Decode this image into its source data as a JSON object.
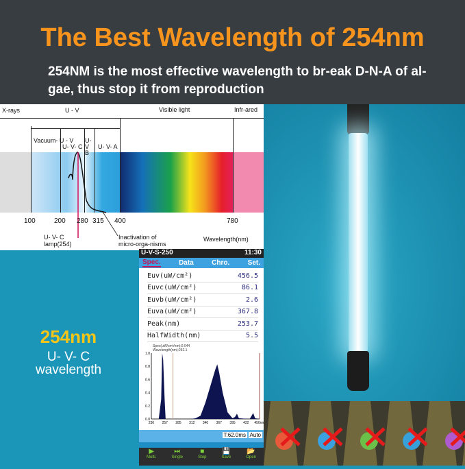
{
  "header": {
    "title": "The Best Wavelength of 254nm",
    "subtitle": "254NM is the most effective wavelength to br-eak D-N-A of al-gae, thus stop it from reproduction"
  },
  "diagram": {
    "top_labels": [
      "X-rays",
      "U - V",
      "Visible light",
      "Infr-ared"
    ],
    "sub_labels": [
      "Vacuum- U - V",
      "U- V- C",
      "U-V B",
      "U- V- A"
    ],
    "ticks": [
      "100",
      "200",
      "280",
      "315",
      "400",
      "780"
    ],
    "lamp_label": "U- V- C lamp(254)",
    "inactivation_label": "Inactivation of micro-orga-nisms",
    "axis_label": "Wavelength(nm)"
  },
  "left": {
    "big": "254nm",
    "line1": "U- V- C",
    "line2": "wavelength",
    "accent": "#f5c518"
  },
  "device": {
    "model": "U-V-S-250",
    "time": "11:30",
    "tabs": [
      "Spec.",
      "Data",
      "Chro.",
      "Set."
    ],
    "rows": [
      {
        "label": "Euv(uW/cm²)",
        "value": "456.5"
      },
      {
        "label": "Euvc(uW/cm²)",
        "value": "86.1"
      },
      {
        "label": "Euvb(uW/cm²)",
        "value": "2.6"
      },
      {
        "label": "Euva(uW/cm²)",
        "value": "367.8"
      },
      {
        "label": "Peak(nm)",
        "value": "253.7"
      },
      {
        "label": "HalfWidth(nm)",
        "value": "5.5"
      }
    ],
    "chart_info1": "Spec(uW/cm²/nm):0.044",
    "chart_info2": "Wavelength(nm):292.1",
    "x_ticks": [
      "230",
      "257",
      "285",
      "312",
      "340",
      "367",
      "395",
      "422",
      "450nm"
    ],
    "y_ticks": [
      "0.0",
      "0.2",
      "0.4",
      "0.6",
      "0.8",
      "1.0"
    ],
    "spectrum": [
      [
        230,
        0
      ],
      [
        245,
        0
      ],
      [
        250,
        0.3
      ],
      [
        252,
        1.0
      ],
      [
        254,
        0.9
      ],
      [
        257,
        0.3
      ],
      [
        259,
        0
      ],
      [
        310,
        0
      ],
      [
        320,
        0.01
      ],
      [
        330,
        0.05
      ],
      [
        340,
        0.25
      ],
      [
        350,
        0.5
      ],
      [
        360,
        0.75
      ],
      [
        364,
        0.83
      ],
      [
        368,
        0.7
      ],
      [
        375,
        0.4
      ],
      [
        385,
        0.1
      ],
      [
        395,
        0.01
      ],
      [
        400,
        0.03
      ],
      [
        404,
        0.08
      ],
      [
        408,
        0.01
      ],
      [
        430,
        0
      ],
      [
        434,
        0.05
      ],
      [
        437,
        0.09
      ],
      [
        441,
        0.01
      ],
      [
        450,
        0
      ]
    ],
    "exposure": "T:62.0ms",
    "mode": "Auto",
    "buttons": [
      "Multi.",
      "Single",
      "Stop",
      "Save",
      "Open"
    ]
  }
}
